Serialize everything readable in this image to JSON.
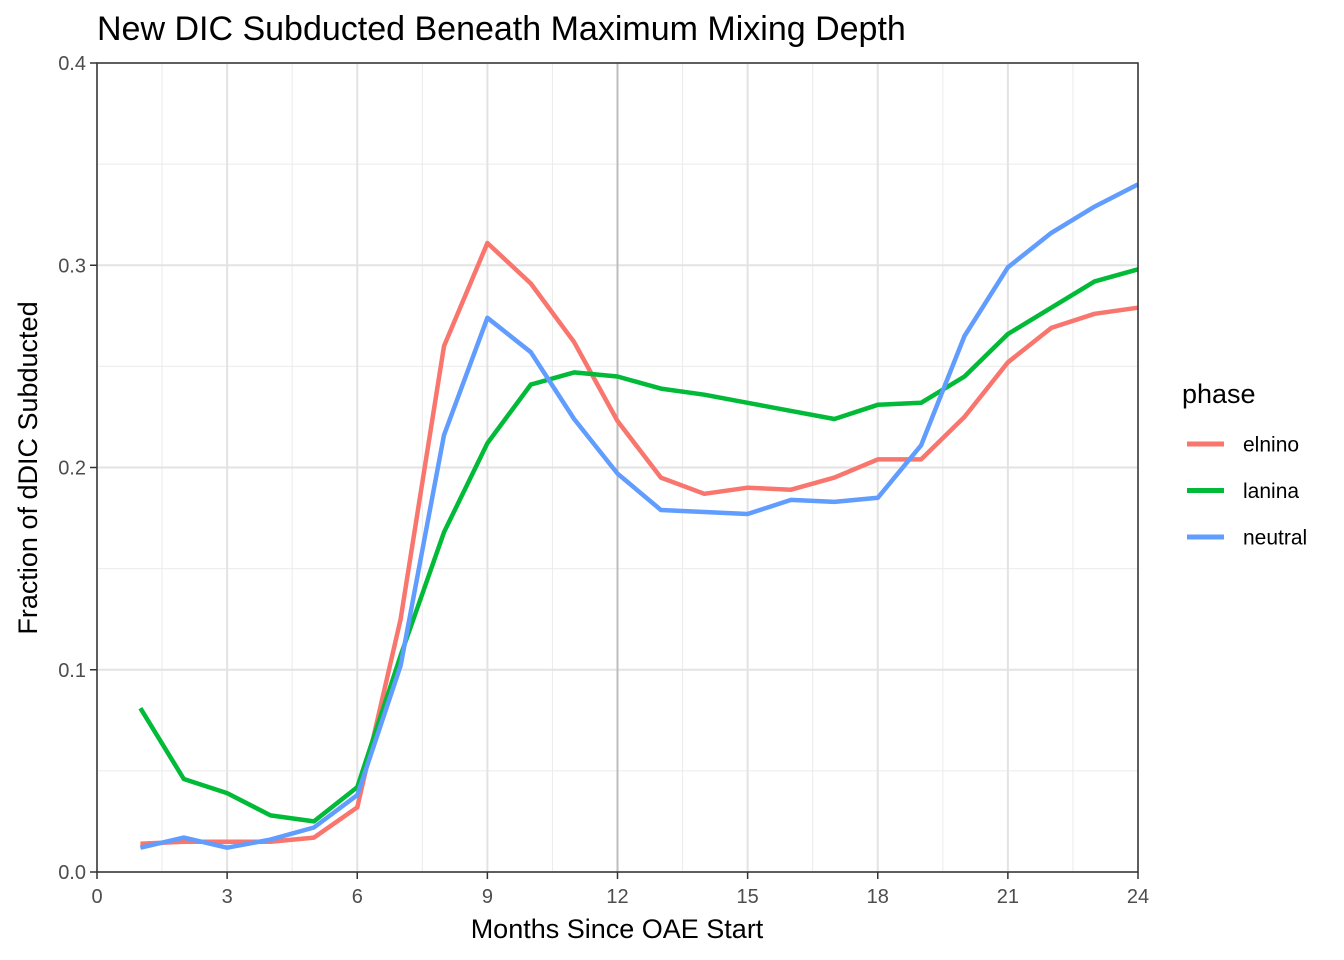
{
  "chart_data": {
    "type": "line",
    "title": "New DIC Subducted Beneath Maximum Mixing Depth",
    "xlabel": "Months Since OAE Start",
    "ylabel": "Fraction of dDIC Subducted",
    "xlim": [
      0,
      24
    ],
    "ylim": [
      0,
      0.4
    ],
    "x_ticks": [
      0,
      3,
      6,
      9,
      12,
      15,
      18,
      21,
      24
    ],
    "y_ticks": [
      0.0,
      0.1,
      0.2,
      0.3,
      0.4
    ],
    "x_tick_labels": [
      "0",
      "3",
      "6",
      "9",
      "12",
      "15",
      "18",
      "21",
      "24"
    ],
    "y_tick_labels": [
      "0.0",
      "0.1",
      "0.2",
      "0.3",
      "0.4"
    ],
    "grid": true,
    "vertical_reference_line_x": 12,
    "legend": {
      "title": "phase",
      "position": "right"
    },
    "x": [
      1,
      2,
      3,
      4,
      5,
      6,
      7,
      8,
      9,
      10,
      11,
      12,
      13,
      14,
      15,
      16,
      17,
      18,
      19,
      20,
      21,
      22,
      23,
      24
    ],
    "series": [
      {
        "name": "elnino",
        "color": "#F8766D",
        "values": [
          0.014,
          0.015,
          0.015,
          0.015,
          0.017,
          0.032,
          0.125,
          0.26,
          0.311,
          0.291,
          0.262,
          0.223,
          0.195,
          0.187,
          0.19,
          0.189,
          0.195,
          0.204,
          0.204,
          0.225,
          0.252,
          0.269,
          0.276,
          0.279
        ]
      },
      {
        "name": "lanina",
        "color": "#00BA38",
        "values": [
          0.081,
          0.046,
          0.039,
          0.028,
          0.025,
          0.042,
          0.107,
          0.168,
          0.212,
          0.241,
          0.247,
          0.245,
          0.239,
          0.236,
          0.232,
          0.228,
          0.224,
          0.231,
          0.232,
          0.245,
          0.266,
          0.279,
          0.292,
          0.298
        ]
      },
      {
        "name": "neutral",
        "color": "#619CFF",
        "values": [
          0.012,
          0.017,
          0.012,
          0.016,
          0.022,
          0.038,
          0.102,
          0.216,
          0.274,
          0.257,
          0.224,
          0.197,
          0.179,
          0.178,
          0.177,
          0.184,
          0.183,
          0.185,
          0.211,
          0.265,
          0.299,
          0.316,
          0.329,
          0.34
        ]
      }
    ]
  }
}
